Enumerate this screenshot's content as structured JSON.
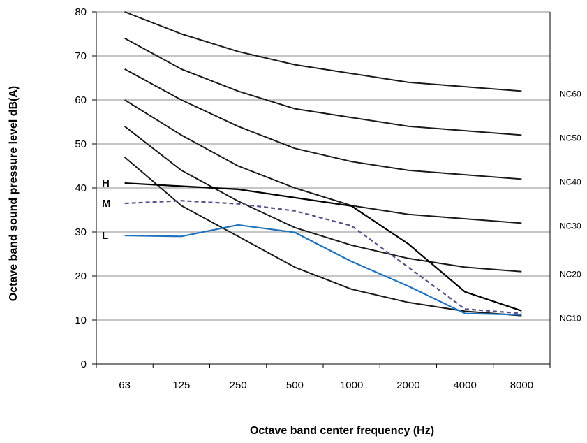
{
  "chart_data": {
    "type": "line",
    "title": "",
    "xlabel": "Octave band center frequency (Hz)",
    "ylabel": "Octave band sound pressure level dB(A)",
    "categories": [
      "63",
      "125",
      "250",
      "500",
      "1000",
      "2000",
      "4000",
      "8000"
    ],
    "ylim": [
      0,
      80
    ],
    "yticks": [
      "0",
      "10",
      "20",
      "30",
      "40",
      "50",
      "60",
      "70",
      "80"
    ],
    "grid": "horizontal",
    "reference_curves": [
      {
        "label": "NC60",
        "values": [
          80,
          75,
          71,
          68,
          66,
          64,
          63,
          62
        ]
      },
      {
        "label": "NC50",
        "values": [
          74,
          67,
          62,
          58,
          56,
          54,
          53,
          52
        ]
      },
      {
        "label": "NC40",
        "values": [
          67,
          60,
          54,
          49,
          46,
          44,
          43,
          42
        ]
      },
      {
        "label": "NC30",
        "values": [
          60,
          52,
          45,
          40,
          36,
          34,
          33,
          32
        ]
      },
      {
        "label": "NC20",
        "values": [
          54,
          44,
          37,
          31,
          27,
          24,
          22,
          21
        ]
      },
      {
        "label": "NC10",
        "values": [
          47,
          36,
          29,
          22,
          17,
          14,
          12,
          11
        ]
      }
    ],
    "series": [
      {
        "name": "H",
        "color": "#000000",
        "style": "solid",
        "values": [
          41.1,
          40.4,
          39.7,
          37.8,
          35.9,
          27.3,
          16.4,
          12.1
        ]
      },
      {
        "name": "M",
        "color": "#5b4f8a",
        "style": "dashed",
        "values": [
          36.5,
          37.1,
          36.4,
          34.8,
          31.4,
          22.0,
          12.5,
          11.5
        ]
      },
      {
        "name": "L",
        "color": "#1f73be",
        "style": "solid",
        "values": [
          29.2,
          29.0,
          31.6,
          29.9,
          23.3,
          17.7,
          11.5,
          11.2
        ]
      }
    ]
  }
}
